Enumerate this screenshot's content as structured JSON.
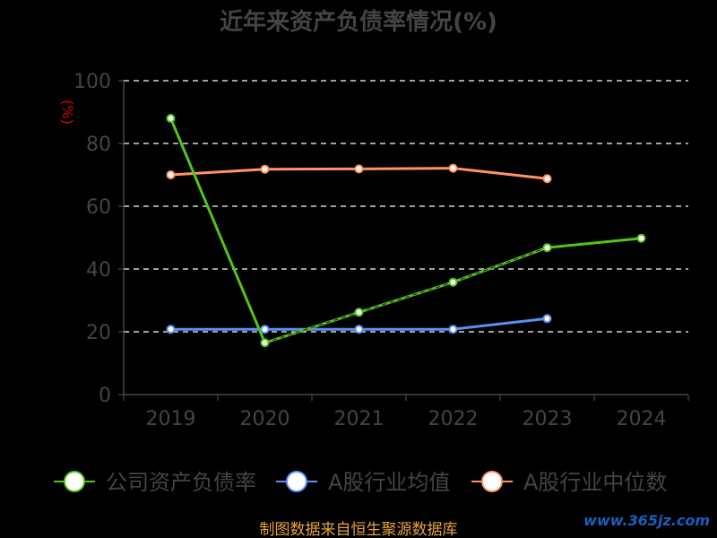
{
  "chart_data": {
    "type": "line",
    "title": "近年来资产负债率情况(%)",
    "ylabel": "(%)",
    "xlabel": "",
    "categories": [
      "2019",
      "2020",
      "2021",
      "2022",
      "2023",
      "2024"
    ],
    "ylim": [
      0,
      100
    ],
    "yticks": [
      0,
      20,
      40,
      60,
      80,
      100
    ],
    "grid": "horizontal dashed",
    "legend_position": "bottom",
    "series": [
      {
        "name": "公司资产负债率",
        "color": "#52c41a",
        "values": [
          88,
          16.5,
          26.2,
          35.8,
          46.8,
          49.8
        ],
        "dashed_segments": [
          [
            1,
            2
          ],
          [
            2,
            3
          ],
          [
            3,
            4
          ]
        ]
      },
      {
        "name": "A股行业均值",
        "color": "#5b8ff9",
        "values": [
          20.8,
          20.8,
          20.8,
          20.8,
          24.2,
          null
        ]
      },
      {
        "name": "A股行业中位数",
        "color": "#ff9461",
        "values": [
          70,
          71.8,
          71.9,
          72.1,
          68.8,
          null
        ]
      }
    ]
  },
  "footer": {
    "source": "制图数据来自恒生聚源数据库",
    "source_color": "#e6a23c",
    "watermark": "www.365jz.com"
  }
}
